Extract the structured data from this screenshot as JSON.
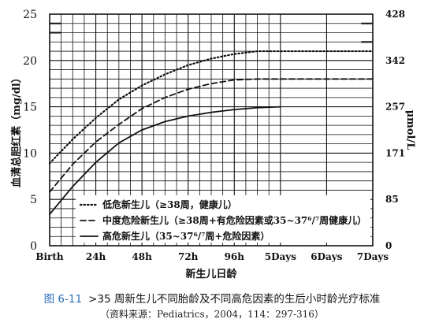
{
  "chart_data": {
    "type": "line",
    "categories": [
      "Birth",
      "24h",
      "48h",
      "72h",
      "96h",
      "5Days",
      "6Days",
      "7Days"
    ],
    "ylabel": "血清总胆红素（mg/dl）",
    "y2label": "μmol/L",
    "xlabel": "新生儿日龄",
    "ylim": [
      0,
      25
    ],
    "y_ticks": [
      "0",
      "5",
      "10",
      "15",
      "20",
      "25"
    ],
    "y2_ticks": [
      {
        "at_mgdl": 0,
        "label": "0"
      },
      {
        "at_mgdl": 5,
        "label": "85"
      },
      {
        "at_mgdl": 10,
        "label": "171"
      },
      {
        "at_mgdl": 15,
        "label": "257"
      },
      {
        "at_mgdl": 20,
        "label": "342"
      },
      {
        "at_mgdl": 25,
        "label": "428"
      }
    ],
    "grid": true,
    "legend_position": "bottom-center",
    "series": [
      {
        "name": "低危新生儿（≥38周，健康儿）",
        "style": "dotted",
        "x": [
          0,
          0.5,
          1,
          1.5,
          2,
          2.5,
          3,
          3.5,
          4,
          4.5,
          5,
          5.5,
          6,
          6.5,
          7
        ],
        "y": [
          8.9,
          11.5,
          13.8,
          15.8,
          17.3,
          18.5,
          19.5,
          20.2,
          20.7,
          21.0,
          21.0,
          21.0,
          21.0,
          21.0,
          21.0
        ]
      },
      {
        "name": "中度危险新生儿（≥38周+有危险因素或35~37⁶/⁷周健康儿）",
        "style": "dashed",
        "x": [
          0,
          0.5,
          1,
          1.5,
          2,
          2.5,
          3,
          3.5,
          4,
          4.5,
          5,
          5.5,
          6,
          6.5,
          7
        ],
        "y": [
          5.8,
          8.8,
          11.2,
          13.1,
          14.8,
          16.0,
          16.9,
          17.5,
          17.9,
          18.0,
          18.0,
          18.0,
          18.0,
          18.0,
          18.0
        ]
      },
      {
        "name": "高危新生儿（35~37⁶/⁷周+危险因素）",
        "style": "solid",
        "x": [
          0,
          0.5,
          1,
          1.5,
          2,
          2.5,
          3,
          3.5,
          4,
          4.5,
          5
        ],
        "y": [
          3.4,
          6.4,
          9.0,
          11.1,
          12.5,
          13.4,
          14.0,
          14.4,
          14.7,
          14.9,
          15.0
        ]
      }
    ]
  },
  "caption": {
    "figure_label": "图 6-11",
    "title": ">35 周新生儿不同胎龄及不同高危因素的生后小时龄光疗标准",
    "source": "（资料来源：Pediatrics，2004，114：297-316）"
  }
}
